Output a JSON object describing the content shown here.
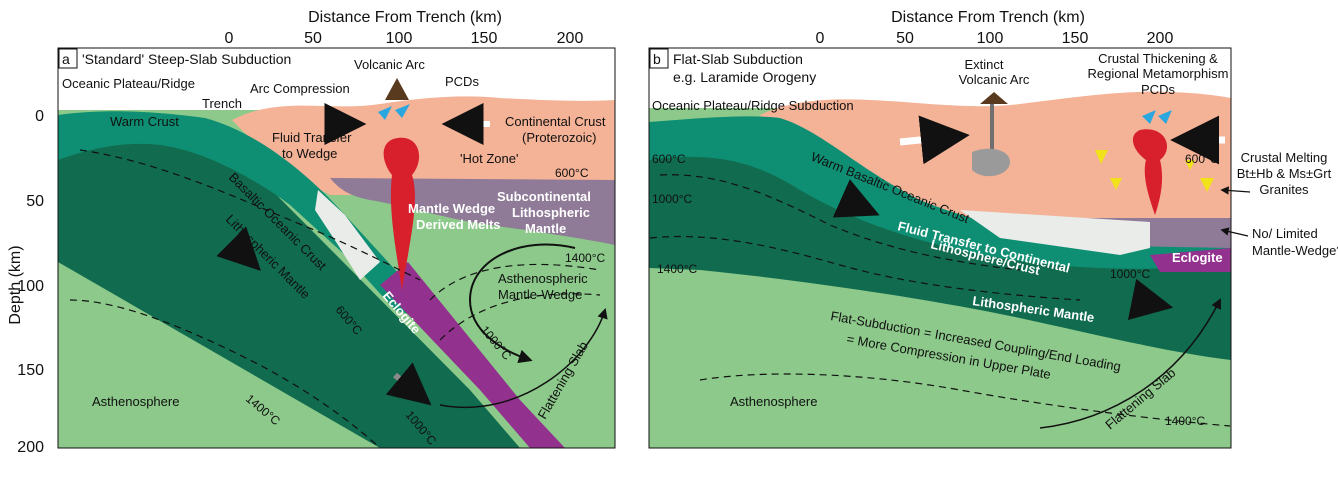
{
  "top_axis": {
    "title": "Distance From Trench (km)",
    "ticks": [
      "0",
      "50",
      "100",
      "150",
      "200"
    ]
  },
  "left_axis": {
    "title": "Depth (km)",
    "ticks": [
      "0",
      "50",
      "100",
      "150",
      "200"
    ]
  },
  "panel_a": {
    "letter": "a",
    "title": "'Standard' Steep-Slab Subduction",
    "labels": {
      "plateau": "Oceanic Plateau/Ridge",
      "trench": "Trench",
      "arc_compression": "Arc Compression",
      "volcanic_arc": "Volcanic Arc",
      "pcds": "PCDs",
      "warm_crust": "Warm Crust",
      "continental_crust_1": "Continental Crust",
      "continental_crust_2": "(Proterozoic)",
      "fluid_transfer_1": "Fluid Transfer",
      "fluid_transfer_2": "to Wedge",
      "hot_zone": "'Hot Zone'",
      "basaltic_crust": "Basaltic Oceanic Crust",
      "lithospheric_mantle": "Lithospheric Mantle",
      "mantle_wedge_melts_1": "Mantle Wedge",
      "mantle_wedge_melts_2": "Derived Melts",
      "subcont_1": "Subcontinental",
      "subcont_2": "Lithospheric",
      "subcont_3": "Mantle",
      "eclogite": "Eclogite",
      "astheno_wedge_1": "Asthenospheric",
      "astheno_wedge_2": "Mantle-Wedge",
      "asthenosphere": "Asthenosphere",
      "flattening_slab": "Flattening Slab",
      "iso_600_cont": "600°C",
      "iso_600_slab": "600°C",
      "iso_1000_slab": "1000°C",
      "iso_1000_wedge": "1000°C",
      "iso_1400_wedge": "1400°C",
      "iso_1400_deep": "1400°C"
    }
  },
  "panel_b": {
    "letter": "b",
    "title_1": "Flat-Slab Subduction",
    "title_2": "e.g. Laramide Orogeny",
    "labels": {
      "plateau": "Oceanic Plateau/Ridge Subduction",
      "extinct_1": "Extinct",
      "extinct_2": "Volcanic Arc",
      "thickening_1": "Crustal Thickening &",
      "thickening_2": "Regional Metamorphism",
      "pcds": "PCDs",
      "warm_basaltic": "Warm Basaltic Oceanic Crust",
      "fluid_transfer_1": "Fluid Transfer to Continental",
      "fluid_transfer_2": "Lithosphere/Crust",
      "eclogite": "Eclogite",
      "lithospheric_mantle": "Lithospheric Mantle",
      "flat_text_1": "Flat-Subduction = Increased Coupling/End Loading",
      "flat_text_2": "= More Compression in Upper Plate",
      "asthenosphere": "Asthenosphere",
      "flattening_slab": "Flattening Slab",
      "iso_600_left": "600°C",
      "iso_1000_left": "1000°C",
      "iso_1400_left": "1400°C",
      "iso_600_right": "600°C",
      "iso_1000_mid": "1000°C",
      "iso_1400_right": "1400°C"
    },
    "side_notes": {
      "melting_1": "Crustal Melting",
      "melting_2": "Bt±Hb & Ms±Grt",
      "melting_3": "Granites",
      "no_wedge_1": "No/ Limited",
      "no_wedge_2": "Mantle-Wedge?"
    }
  },
  "colors": {
    "continental_crust": "#f4b296",
    "oceanic_crust": "#0e8f73",
    "lithospheric_mantle": "#116b4f",
    "asthenosphere": "#8cc98a",
    "subcontinental_mantle": "#8f7a97",
    "eclogite": "#93318f",
    "melt": "#d7202b",
    "fluid": "#e9ece8",
    "pcd": "#2aa7de"
  }
}
